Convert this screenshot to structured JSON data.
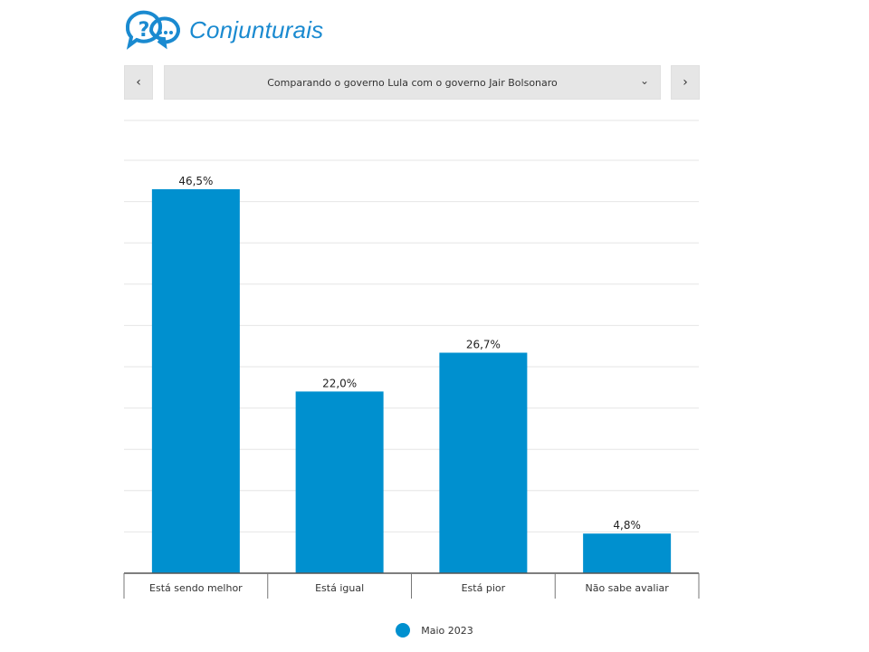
{
  "header": {
    "title": "Conjunturais",
    "logo_icon": "question-chat-bubbles-icon"
  },
  "selector": {
    "prev_label": "‹",
    "value": "Comparando o governo Lula com o governo Jair Bolsonaro",
    "chevron": "⌄",
    "next_label": "›"
  },
  "chart_data": {
    "type": "bar",
    "categories": [
      "Está sendo melhor",
      "Está igual",
      "Está pior",
      "Não sabe avaliar"
    ],
    "series": [
      {
        "name": "Maio 2023",
        "values": [
          46.5,
          22.0,
          26.7,
          4.8
        ],
        "color": "#0090cf"
      }
    ],
    "data_labels": [
      "46,5%",
      "22,0%",
      "26,7%",
      "4,8%"
    ],
    "ylim": [
      0,
      50
    ],
    "grid": true,
    "legend": "bottom-center"
  },
  "legend": {
    "label": "Maio 2023"
  }
}
